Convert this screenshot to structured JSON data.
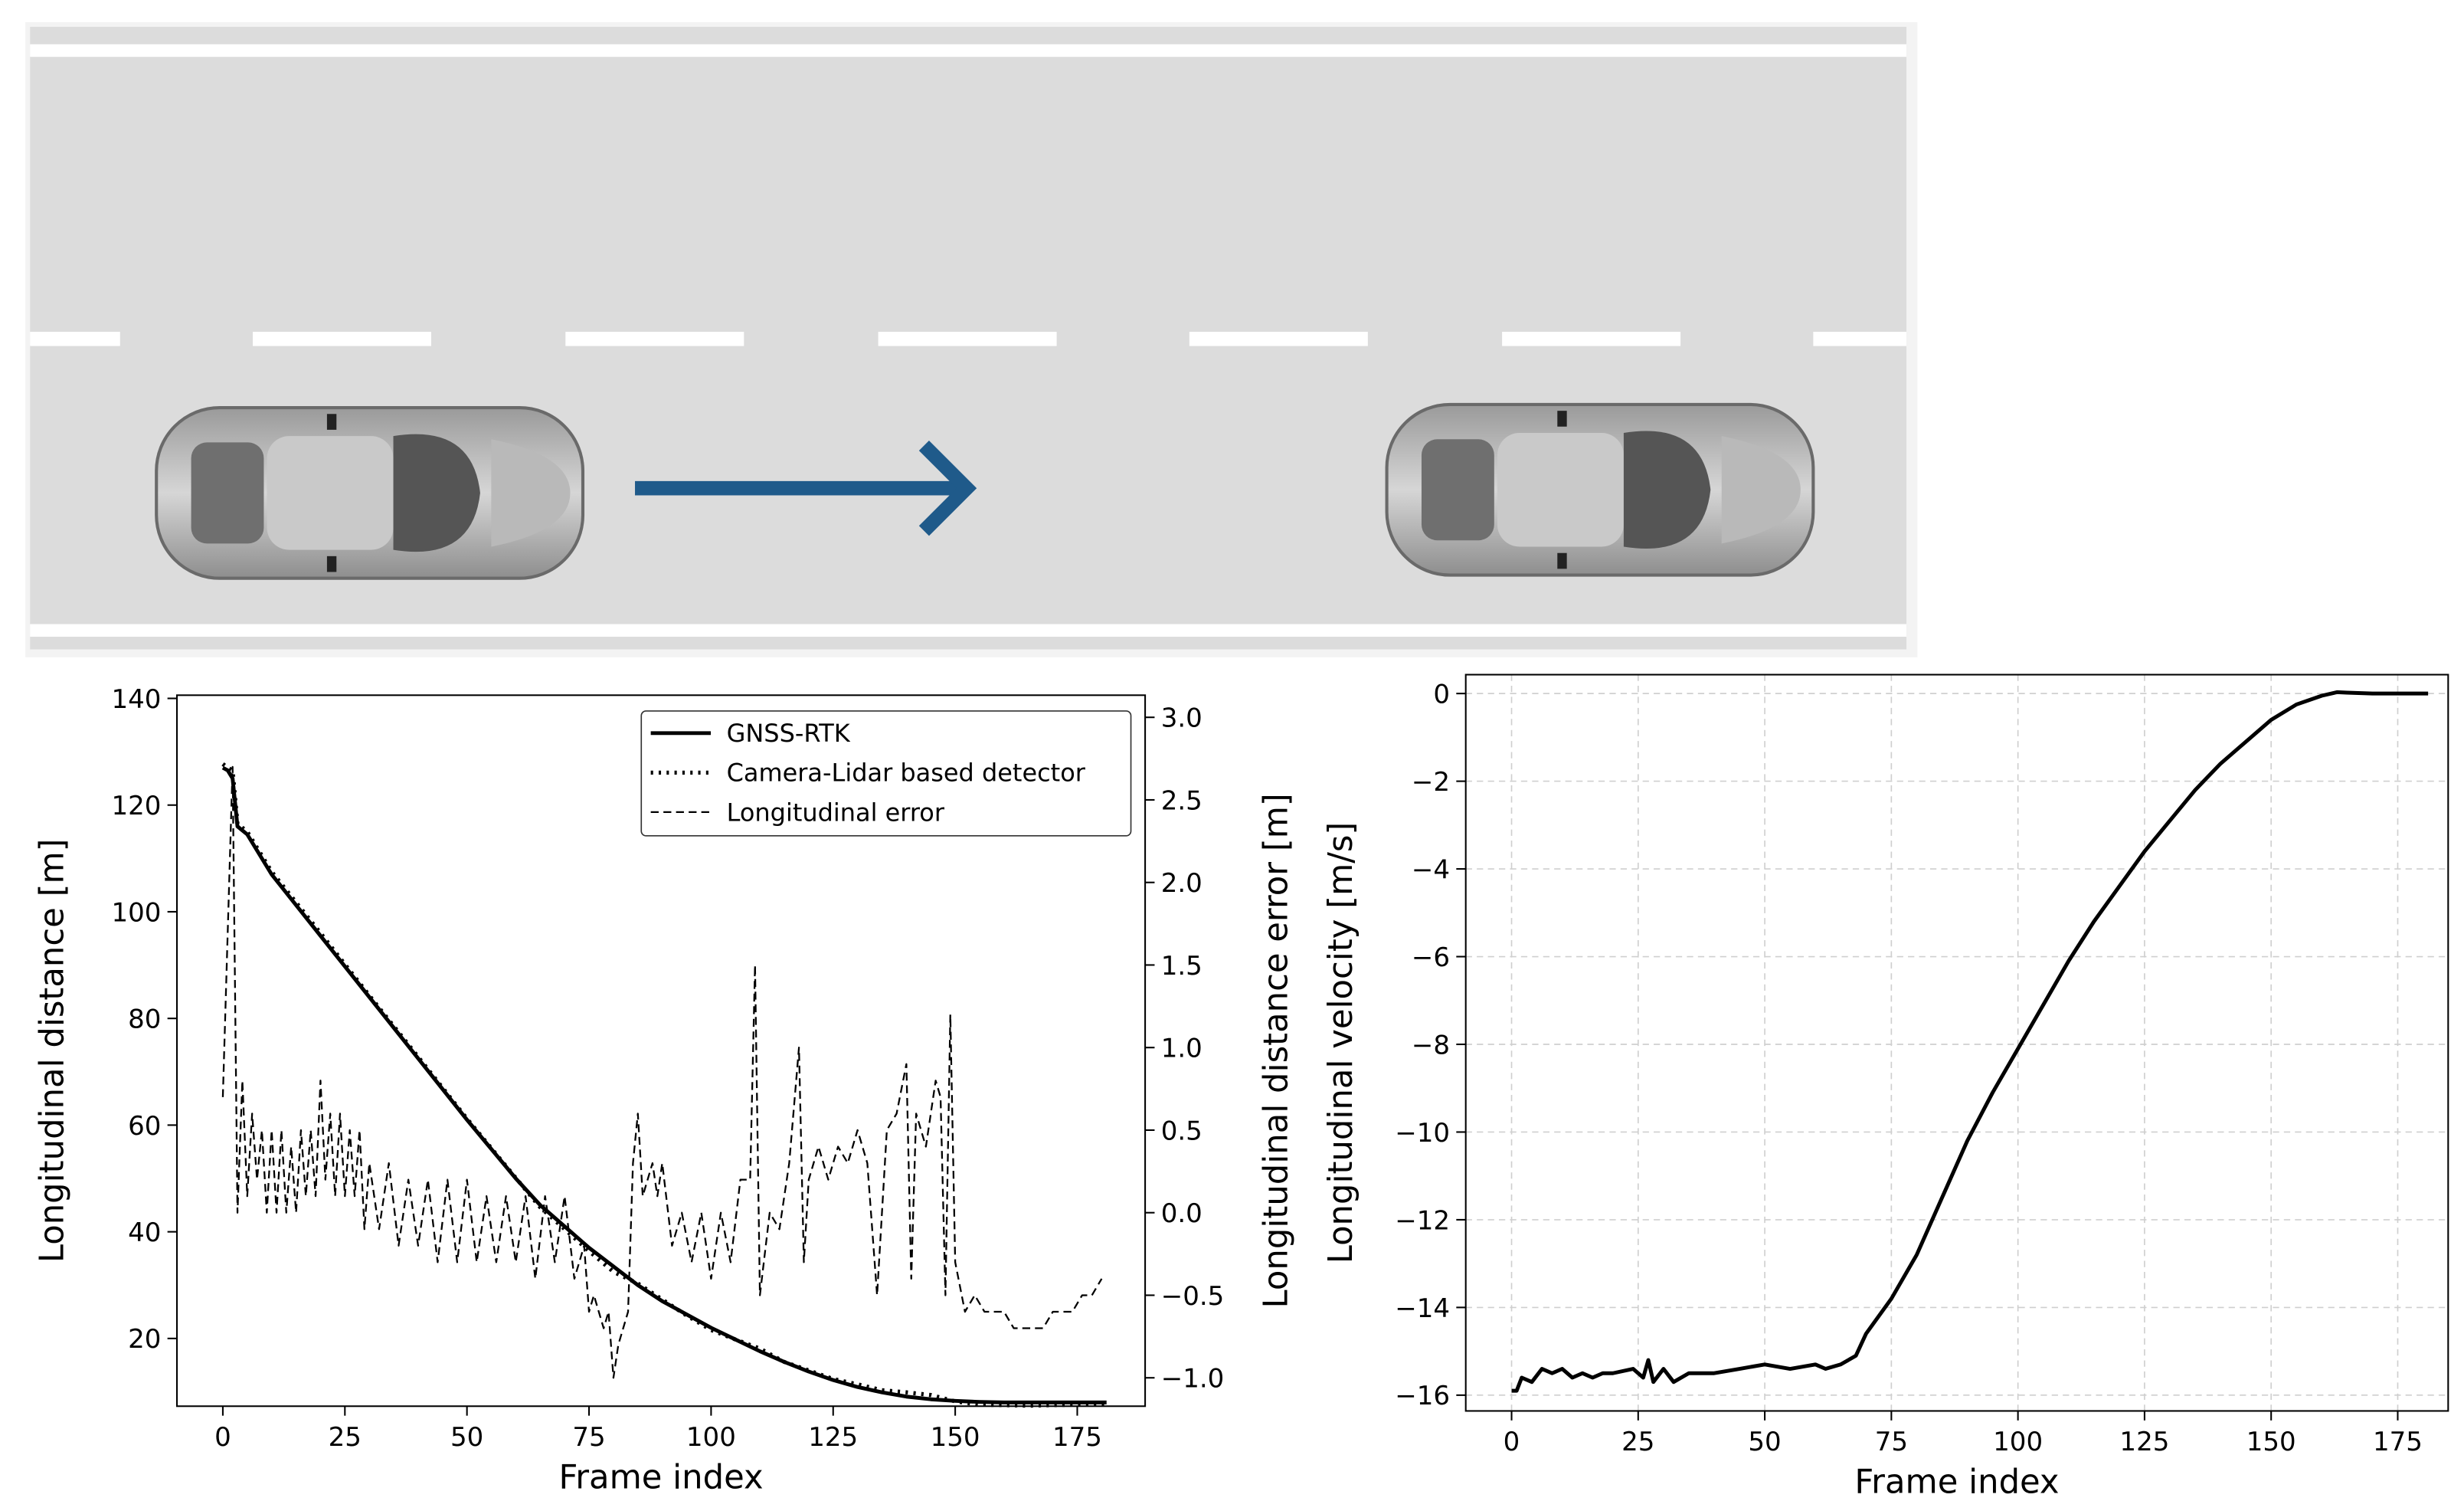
{
  "chart_data": [
    {
      "type": "line",
      "xlabel": "Frame index",
      "ylabel": "Longitudinal distance [m]",
      "y2label": "Longitudinal distance error [m]",
      "xlim": [
        -9.4,
        188.9
      ],
      "ylim": [
        7.3,
        140.6
      ],
      "y2lim": [
        -1.172,
        3.134
      ],
      "xticks": [
        0,
        25,
        50,
        75,
        100,
        125,
        150,
        175
      ],
      "yticks": [
        20,
        40,
        60,
        80,
        100,
        120,
        140
      ],
      "y2ticks": [
        {
          "value": -1,
          "label": "−1.0"
        },
        {
          "value": -0.5,
          "label": "−0.5"
        },
        {
          "value": 0,
          "label": "0.0"
        },
        0.5,
        {
          "value": 1,
          "label": "1.0"
        },
        1.5,
        {
          "value": 2,
          "label": "2.0"
        },
        2.5,
        {
          "value": 3,
          "label": "3.0"
        }
      ],
      "grid": false,
      "legend": "upper right",
      "series": [
        {
          "name": "GNSS-RTK",
          "color": "#000000",
          "linestyle": "solid",
          "x": [
            0,
            1,
            2,
            3,
            5,
            10,
            20,
            30,
            40,
            50,
            60,
            65,
            70,
            75,
            80,
            85,
            90,
            95,
            100,
            105,
            110,
            115,
            120,
            125,
            130,
            135,
            140,
            145,
            150,
            155,
            160,
            165,
            170,
            175,
            181
          ],
          "values": [
            127,
            126.5,
            125,
            116,
            114.5,
            107,
            95.5,
            84,
            72.5,
            61,
            50,
            45,
            41,
            37,
            33.5,
            30,
            27,
            24.5,
            22,
            19.8,
            17.6,
            15.6,
            13.8,
            12.2,
            10.9,
            9.9,
            9.1,
            8.6,
            8.3,
            8.1,
            8,
            8,
            8,
            8,
            8
          ]
        },
        {
          "name": "Camera-Lidar based detector",
          "color": "#000000",
          "linestyle": "dotted",
          "x": [
            0,
            1,
            2,
            3,
            5,
            10,
            20,
            30,
            40,
            50,
            60,
            65,
            70,
            75,
            80,
            85,
            90,
            95,
            100,
            105,
            110,
            115,
            120,
            125,
            130,
            135,
            140,
            145,
            150,
            155,
            160,
            165,
            170,
            175,
            181
          ],
          "values": [
            127.7,
            127,
            126.5,
            116.5,
            115,
            107.5,
            96,
            84.3,
            72.8,
            61.2,
            50.1,
            44.6,
            40.5,
            36.4,
            32.5,
            30.3,
            27.3,
            24.3,
            21.6,
            19.8,
            18.1,
            15.6,
            14,
            12.4,
            11.4,
            10.3,
            9.9,
            9.4,
            8.2,
            7.6,
            7.5,
            7.4,
            7.5,
            7.6,
            7.6
          ]
        },
        {
          "name": "Longitudinal error",
          "color": "#000000",
          "linestyle": "dashed",
          "axis": "y2",
          "x": [
            0,
            2,
            3,
            4,
            5,
            6,
            7,
            8,
            9,
            10,
            11,
            12,
            13,
            14,
            15,
            16,
            17,
            18,
            19,
            20,
            21,
            22,
            23,
            24,
            25,
            26,
            27,
            28,
            29,
            30,
            32,
            34,
            36,
            38,
            40,
            42,
            44,
            46,
            48,
            50,
            52,
            54,
            56,
            58,
            60,
            62,
            64,
            66,
            68,
            70,
            72,
            74,
            75,
            76,
            78,
            79,
            80,
            81,
            83,
            84,
            85,
            86,
            88,
            89,
            90,
            92,
            94,
            96,
            98,
            100,
            102,
            104,
            106,
            108,
            109,
            110,
            112,
            114,
            116,
            118,
            119,
            120,
            122,
            124,
            126,
            128,
            130,
            132,
            134,
            136,
            138,
            140,
            141,
            142,
            144,
            146,
            147,
            148,
            149,
            150,
            152,
            154,
            156,
            160,
            162,
            168,
            170,
            174,
            176,
            178,
            180
          ],
          "values": [
            0.7,
            2.7,
            0,
            0.8,
            0.1,
            0.6,
            0.2,
            0.5,
            0,
            0.5,
            0,
            0.5,
            0,
            0.4,
            0,
            0.5,
            0.1,
            0.5,
            0.1,
            0.8,
            0.2,
            0.6,
            0.1,
            0.6,
            0.1,
            0.5,
            0.1,
            0.5,
            -0.1,
            0.3,
            -0.1,
            0.3,
            -0.2,
            0.2,
            -0.2,
            0.2,
            -0.3,
            0.2,
            -0.3,
            0.2,
            -0.3,
            0.1,
            -0.3,
            0.1,
            -0.3,
            0.1,
            -0.4,
            0.1,
            -0.3,
            0.1,
            -0.4,
            -0.2,
            -0.6,
            -0.5,
            -0.7,
            -0.6,
            -1.0,
            -0.8,
            -0.6,
            0.3,
            0.6,
            0.1,
            0.3,
            0.1,
            0.3,
            -0.2,
            0,
            -0.3,
            0,
            -0.4,
            0,
            -0.3,
            0.2,
            0.2,
            1.5,
            -0.5,
            0,
            -0.1,
            0.3,
            1.0,
            -0.3,
            0.2,
            0.4,
            0.2,
            0.4,
            0.3,
            0.5,
            0.3,
            -0.5,
            0.5,
            0.6,
            0.9,
            -0.4,
            0.6,
            0.4,
            0.8,
            0.7,
            -0.5,
            1.2,
            -0.3,
            -0.6,
            -0.5,
            -0.6,
            -0.6,
            -0.7,
            -0.7,
            -0.6,
            -0.6,
            -0.5,
            -0.5,
            -0.4
          ]
        }
      ]
    },
    {
      "type": "line",
      "xlabel": "Frame index",
      "ylabel": "Longitudinal velocity [m/s]",
      "xlim": [
        -9.05,
        184.96
      ],
      "ylim": [
        -16.36,
        0.43
      ],
      "xticks": [
        0,
        25,
        50,
        75,
        100,
        125,
        150,
        175
      ],
      "yticks": [
        {
          "value": -16,
          "label": "−16"
        },
        {
          "value": -14,
          "label": "−14"
        },
        {
          "value": -12,
          "label": "−12"
        },
        {
          "value": -10,
          "label": "−10"
        },
        {
          "value": -8,
          "label": "−8"
        },
        {
          "value": -6,
          "label": "−6"
        },
        {
          "value": -4,
          "label": "−4"
        },
        {
          "value": -2,
          "label": "−2"
        },
        0
      ],
      "grid": true,
      "series": [
        {
          "color": "#000000",
          "linestyle": "solid",
          "x": [
            0,
            1,
            2,
            4,
            6,
            8,
            10,
            12,
            14,
            16,
            18,
            20,
            24,
            26,
            27,
            28,
            30,
            32,
            35,
            40,
            45,
            50,
            55,
            60,
            62,
            65,
            68,
            70,
            75,
            80,
            85,
            90,
            95,
            100,
            105,
            110,
            115,
            120,
            125,
            130,
            135,
            140,
            145,
            150,
            155,
            160,
            163,
            165,
            170,
            175,
            181
          ],
          "values": [
            -15.9,
            -15.9,
            -15.6,
            -15.7,
            -15.4,
            -15.5,
            -15.4,
            -15.6,
            -15.5,
            -15.6,
            -15.5,
            -15.5,
            -15.4,
            -15.6,
            -15.2,
            -15.7,
            -15.4,
            -15.7,
            -15.5,
            -15.5,
            -15.4,
            -15.3,
            -15.4,
            -15.3,
            -15.4,
            -15.3,
            -15.1,
            -14.6,
            -13.8,
            -12.8,
            -11.5,
            -10.2,
            -9.1,
            -8.1,
            -7.1,
            -6.1,
            -5.2,
            -4.4,
            -3.6,
            -2.9,
            -2.2,
            -1.6,
            -1.1,
            -0.6,
            -0.25,
            -0.05,
            0.03,
            0.02,
            0,
            0,
            0
          ]
        }
      ]
    }
  ]
}
